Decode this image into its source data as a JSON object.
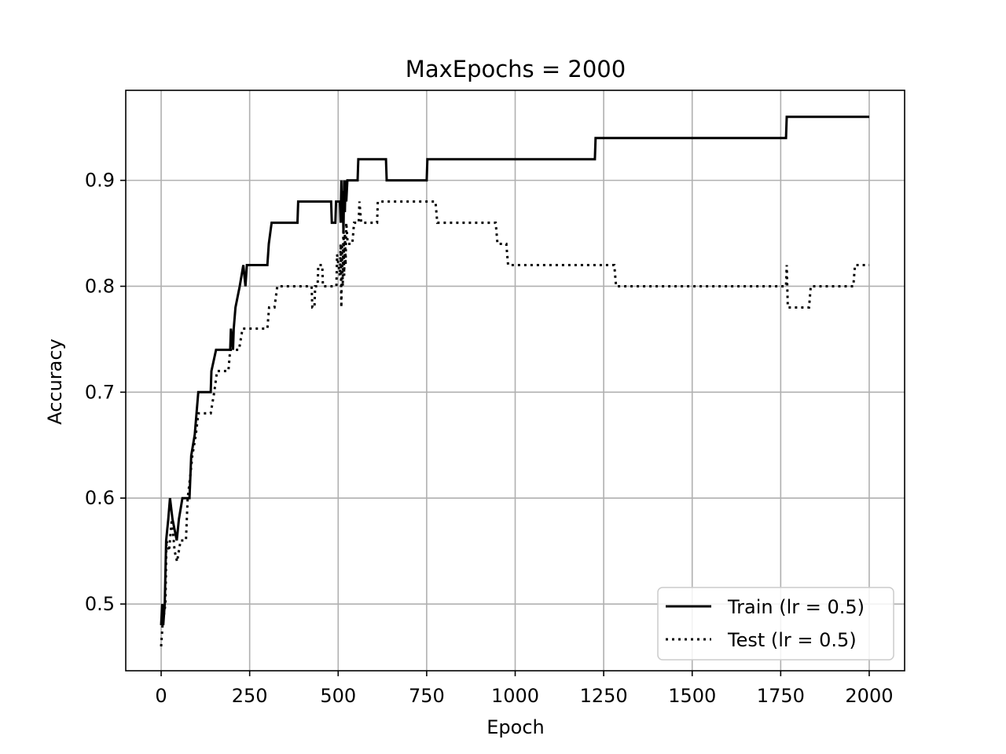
{
  "chart_data": {
    "type": "line",
    "title": "MaxEpochs = 2000",
    "xlabel": "Epoch",
    "ylabel": "Accuracy",
    "xlim": [
      -100,
      2100
    ],
    "ylim": [
      0.437,
      0.985
    ],
    "xticks": [
      0,
      250,
      500,
      750,
      1000,
      1250,
      1500,
      1750,
      2000
    ],
    "xtick_labels": [
      "0",
      "250",
      "500",
      "750",
      "1000",
      "1250",
      "1500",
      "1750",
      "2000"
    ],
    "yticks": [
      0.5,
      0.6,
      0.7,
      0.8,
      0.9
    ],
    "ytick_labels": [
      "0.5",
      "0.6",
      "0.7",
      "0.8",
      "0.9"
    ],
    "grid": true,
    "legend_position": "lower-right",
    "series": [
      {
        "name": "Train (lr = 0.5)",
        "style": "solid",
        "color": "#000000",
        "points": [
          [
            0,
            0.48
          ],
          [
            3,
            0.5
          ],
          [
            6,
            0.48
          ],
          [
            10,
            0.5
          ],
          [
            14,
            0.56
          ],
          [
            20,
            0.58
          ],
          [
            25,
            0.6
          ],
          [
            32,
            0.58
          ],
          [
            44,
            0.56
          ],
          [
            50,
            0.58
          ],
          [
            60,
            0.6
          ],
          [
            80,
            0.6
          ],
          [
            85,
            0.64
          ],
          [
            95,
            0.66
          ],
          [
            105,
            0.7
          ],
          [
            140,
            0.7
          ],
          [
            142,
            0.72
          ],
          [
            155,
            0.74
          ],
          [
            195,
            0.74
          ],
          [
            197,
            0.76
          ],
          [
            203,
            0.74
          ],
          [
            205,
            0.76
          ],
          [
            210,
            0.78
          ],
          [
            222,
            0.8
          ],
          [
            232,
            0.82
          ],
          [
            238,
            0.8
          ],
          [
            242,
            0.82
          ],
          [
            300,
            0.82
          ],
          [
            304,
            0.84
          ],
          [
            312,
            0.86
          ],
          [
            385,
            0.86
          ],
          [
            387,
            0.88
          ],
          [
            480,
            0.88
          ],
          [
            482,
            0.86
          ],
          [
            492,
            0.86
          ],
          [
            494,
            0.88
          ],
          [
            505,
            0.88
          ],
          [
            507,
            0.86
          ],
          [
            509,
            0.9
          ],
          [
            511,
            0.86
          ],
          [
            513,
            0.89
          ],
          [
            515,
            0.85
          ],
          [
            517,
            0.9
          ],
          [
            519,
            0.87
          ],
          [
            521,
            0.9
          ],
          [
            523,
            0.88
          ],
          [
            526,
            0.9
          ],
          [
            555,
            0.9
          ],
          [
            557,
            0.92
          ],
          [
            635,
            0.92
          ],
          [
            637,
            0.9
          ],
          [
            750,
            0.9
          ],
          [
            752,
            0.92
          ],
          [
            1225,
            0.92
          ],
          [
            1227,
            0.94
          ],
          [
            1765,
            0.94
          ],
          [
            1767,
            0.96
          ],
          [
            2000,
            0.96
          ]
        ]
      },
      {
        "name": "Test (lr = 0.5)",
        "style": "dotted",
        "color": "#000000",
        "points": [
          [
            0,
            0.46
          ],
          [
            4,
            0.48
          ],
          [
            8,
            0.49
          ],
          [
            12,
            0.5
          ],
          [
            15,
            0.56
          ],
          [
            22,
            0.55
          ],
          [
            30,
            0.58
          ],
          [
            38,
            0.55
          ],
          [
            45,
            0.54
          ],
          [
            55,
            0.56
          ],
          [
            70,
            0.56
          ],
          [
            75,
            0.6
          ],
          [
            82,
            0.62
          ],
          [
            88,
            0.64
          ],
          [
            98,
            0.66
          ],
          [
            105,
            0.68
          ],
          [
            140,
            0.68
          ],
          [
            150,
            0.7
          ],
          [
            158,
            0.72
          ],
          [
            190,
            0.72
          ],
          [
            195,
            0.74
          ],
          [
            220,
            0.74
          ],
          [
            230,
            0.76
          ],
          [
            300,
            0.76
          ],
          [
            305,
            0.78
          ],
          [
            320,
            0.78
          ],
          [
            328,
            0.8
          ],
          [
            425,
            0.8
          ],
          [
            427,
            0.78
          ],
          [
            433,
            0.78
          ],
          [
            435,
            0.8
          ],
          [
            442,
            0.8
          ],
          [
            444,
            0.82
          ],
          [
            455,
            0.82
          ],
          [
            457,
            0.8
          ],
          [
            495,
            0.8
          ],
          [
            497,
            0.83
          ],
          [
            505,
            0.81
          ],
          [
            507,
            0.84
          ],
          [
            509,
            0.78
          ],
          [
            511,
            0.84
          ],
          [
            513,
            0.8
          ],
          [
            515,
            0.86
          ],
          [
            517,
            0.81
          ],
          [
            519,
            0.85
          ],
          [
            521,
            0.82
          ],
          [
            523,
            0.86
          ],
          [
            527,
            0.84
          ],
          [
            540,
            0.84
          ],
          [
            545,
            0.86
          ],
          [
            558,
            0.86
          ],
          [
            560,
            0.88
          ],
          [
            565,
            0.86
          ],
          [
            610,
            0.86
          ],
          [
            612,
            0.88
          ],
          [
            775,
            0.88
          ],
          [
            780,
            0.86
          ],
          [
            945,
            0.86
          ],
          [
            950,
            0.84
          ],
          [
            975,
            0.84
          ],
          [
            980,
            0.82
          ],
          [
            1280,
            0.82
          ],
          [
            1285,
            0.8
          ],
          [
            1765,
            0.8
          ],
          [
            1767,
            0.82
          ],
          [
            1770,
            0.78
          ],
          [
            1830,
            0.78
          ],
          [
            1835,
            0.8
          ],
          [
            1955,
            0.8
          ],
          [
            1960,
            0.82
          ],
          [
            2000,
            0.82
          ]
        ]
      }
    ]
  }
}
